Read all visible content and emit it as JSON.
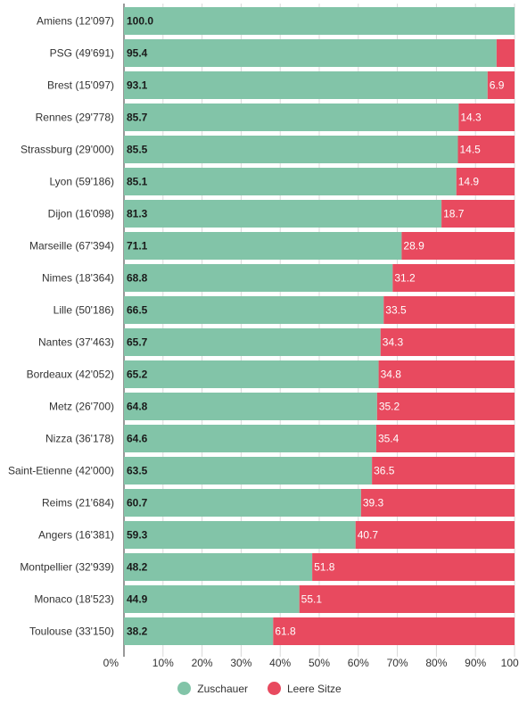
{
  "chart_data": {
    "type": "bar",
    "orientation": "horizontal",
    "stacked": true,
    "categories": [
      "Amiens (12'097)",
      "PSG (49'691)",
      "Brest (15'097)",
      "Rennes (29'778)",
      "Strassburg (29'000)",
      "Lyon (59'186)",
      "Dijon (16'098)",
      "Marseille (67'394)",
      "Nimes (18'364)",
      "Lille (50'186)",
      "Nantes (37'463)",
      "Bordeaux (42'052)",
      "Metz (26'700)",
      "Nizza (36'178)",
      "Saint-Etienne (42'000)",
      "Reims (21'684)",
      "Angers (16'381)",
      "Montpellier (32'939)",
      "Monaco (18'523)",
      "Toulouse (33'150)"
    ],
    "series": [
      {
        "name": "Zuschauer",
        "color": "#82c4a8",
        "values": [
          100.0,
          95.4,
          93.1,
          85.7,
          85.5,
          85.1,
          81.3,
          71.1,
          68.8,
          66.5,
          65.7,
          65.2,
          64.8,
          64.6,
          63.5,
          60.7,
          59.3,
          48.2,
          44.9,
          38.2
        ],
        "labels": [
          "100.0",
          "95.4",
          "93.1",
          "85.7",
          "85.5",
          "85.1",
          "81.3",
          "71.1",
          "68.8",
          "66.5",
          "65.7",
          "65.2",
          "64.8",
          "64.6",
          "63.5",
          "60.7",
          "59.3",
          "48.2",
          "44.9",
          "38.2"
        ]
      },
      {
        "name": "Leere Sitze",
        "color": "#e84a5f",
        "values": [
          0.0,
          4.6,
          6.9,
          14.3,
          14.5,
          14.9,
          18.7,
          28.9,
          31.2,
          33.5,
          34.3,
          34.8,
          35.2,
          35.4,
          36.5,
          39.3,
          40.7,
          51.8,
          55.1,
          61.8
        ],
        "labels": [
          "",
          "",
          "6.9",
          "14.3",
          "14.5",
          "14.9",
          "18.7",
          "28.9",
          "31.2",
          "33.5",
          "34.3",
          "34.8",
          "35.2",
          "35.4",
          "36.5",
          "39.3",
          "40.7",
          "51.8",
          "55.1",
          "61.8"
        ]
      }
    ],
    "xlim": [
      0,
      100
    ],
    "xticks": [
      "0%",
      "10%",
      "20%",
      "30%",
      "40%",
      "50%",
      "60%",
      "70%",
      "80%",
      "90%",
      "100%"
    ],
    "grid": true,
    "legend_position": "bottom-center"
  }
}
